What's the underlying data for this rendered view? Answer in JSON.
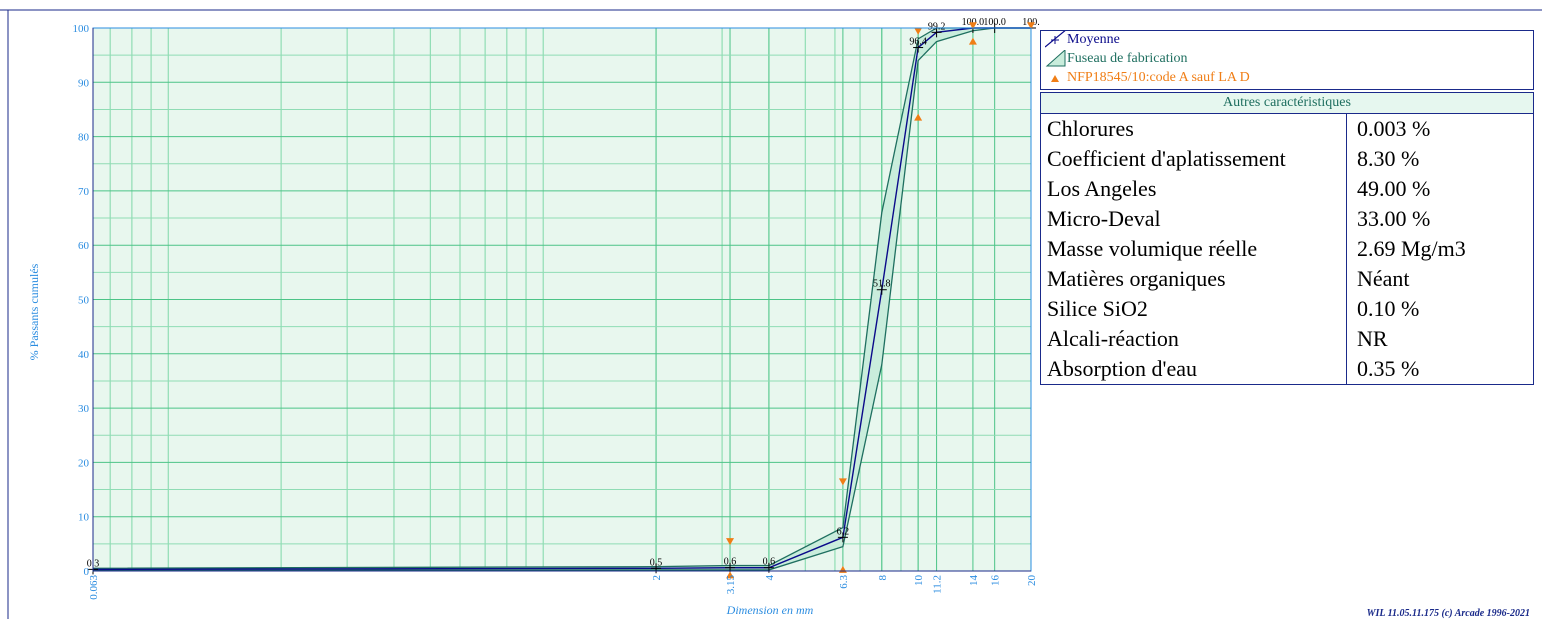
{
  "chart_data": {
    "type": "line",
    "xlabel": "Dimension en mm",
    "ylabel": "% Passants cumulés",
    "x_scale": "log",
    "xlim": [
      0.063,
      20
    ],
    "ylim": [
      0,
      100
    ],
    "x_ticks": [
      0.063,
      2,
      3.15,
      4,
      6.3,
      8,
      10,
      11.2,
      14,
      16,
      20
    ],
    "x_tick_labels": [
      "0.063",
      "2",
      "3.15",
      "4",
      "6.3",
      "8",
      "10",
      "11.2",
      "14",
      "16",
      "20"
    ],
    "y_ticks": [
      0,
      10,
      20,
      30,
      40,
      50,
      60,
      70,
      80,
      90,
      100
    ],
    "grid": true,
    "legend_position": "right",
    "series": [
      {
        "name": "Moyenne",
        "color": "#0a0a8a",
        "x": [
          0.063,
          2,
          3.15,
          4,
          6.3,
          8,
          10,
          11.2,
          14,
          16,
          20
        ],
        "y": [
          0.3,
          0.5,
          0.6,
          0.6,
          6.2,
          51.8,
          96.4,
          99.2,
          100.0,
          100.0,
          100.0
        ],
        "labels": [
          "0.3",
          "0.5",
          "0.6",
          "0.6",
          "6.2",
          "51.8",
          "96.4",
          "99.2",
          "100.0",
          "100.0",
          "100."
        ]
      },
      {
        "name": "Fuseau de fabrication",
        "type": "band",
        "color": "#1f6f60",
        "fill": "#c9eddc",
        "x": [
          0.063,
          2,
          3.15,
          4,
          6.3,
          8,
          10,
          11.2,
          14,
          16,
          20
        ],
        "upper": [
          0.5,
          0.8,
          1.0,
          1.0,
          8.0,
          66.0,
          98.0,
          100.0,
          100.0,
          100.0,
          100.0
        ],
        "lower": [
          0.1,
          0.2,
          0.2,
          0.2,
          4.5,
          38.0,
          94.0,
          97.5,
          99.5,
          100.0,
          100.0
        ]
      },
      {
        "name": "NFP18545/10:code A sauf LA D",
        "type": "markers",
        "color": "#f07e16",
        "down": [
          [
            3.15,
            5.5
          ],
          [
            6.3,
            16.5
          ],
          [
            10,
            99.5
          ],
          [
            14,
            100.5
          ],
          [
            20,
            100.5
          ]
        ],
        "up": [
          [
            3.15,
            -0.8
          ],
          [
            6.3,
            0.2
          ],
          [
            10,
            83.5
          ],
          [
            14,
            97.5
          ]
        ]
      }
    ]
  },
  "legend": {
    "items": [
      {
        "label": "Moyenne",
        "color": "#0a0a8a"
      },
      {
        "label": "Fuseau de fabrication",
        "color": "#1f6f60"
      },
      {
        "label": "NFP18545/10:code A sauf LA D",
        "color": "#f07e16"
      }
    ]
  },
  "properties": {
    "title": "Autres caractéristiques",
    "rows": [
      {
        "name": "Chlorures",
        "value": "0.003 %"
      },
      {
        "name": "Coefficient d'aplatissement",
        "value": "8.30 %"
      },
      {
        "name": "Los Angeles",
        "value": "49.00 %"
      },
      {
        "name": "Micro-Deval",
        "value": "33.00 %"
      },
      {
        "name": "Masse volumique réelle",
        "value": "2.69 Mg/m3"
      },
      {
        "name": "Matières organiques",
        "value": "Néant"
      },
      {
        "name": "Silice SiO2",
        "value": "0.10 %"
      },
      {
        "name": "Alcali-réaction",
        "value": "NR"
      },
      {
        "name": "Absorption d'eau",
        "value": "0.35 %"
      }
    ]
  },
  "footer": "WIL 11.05.11.175 (c) Arcade 1996-2021"
}
